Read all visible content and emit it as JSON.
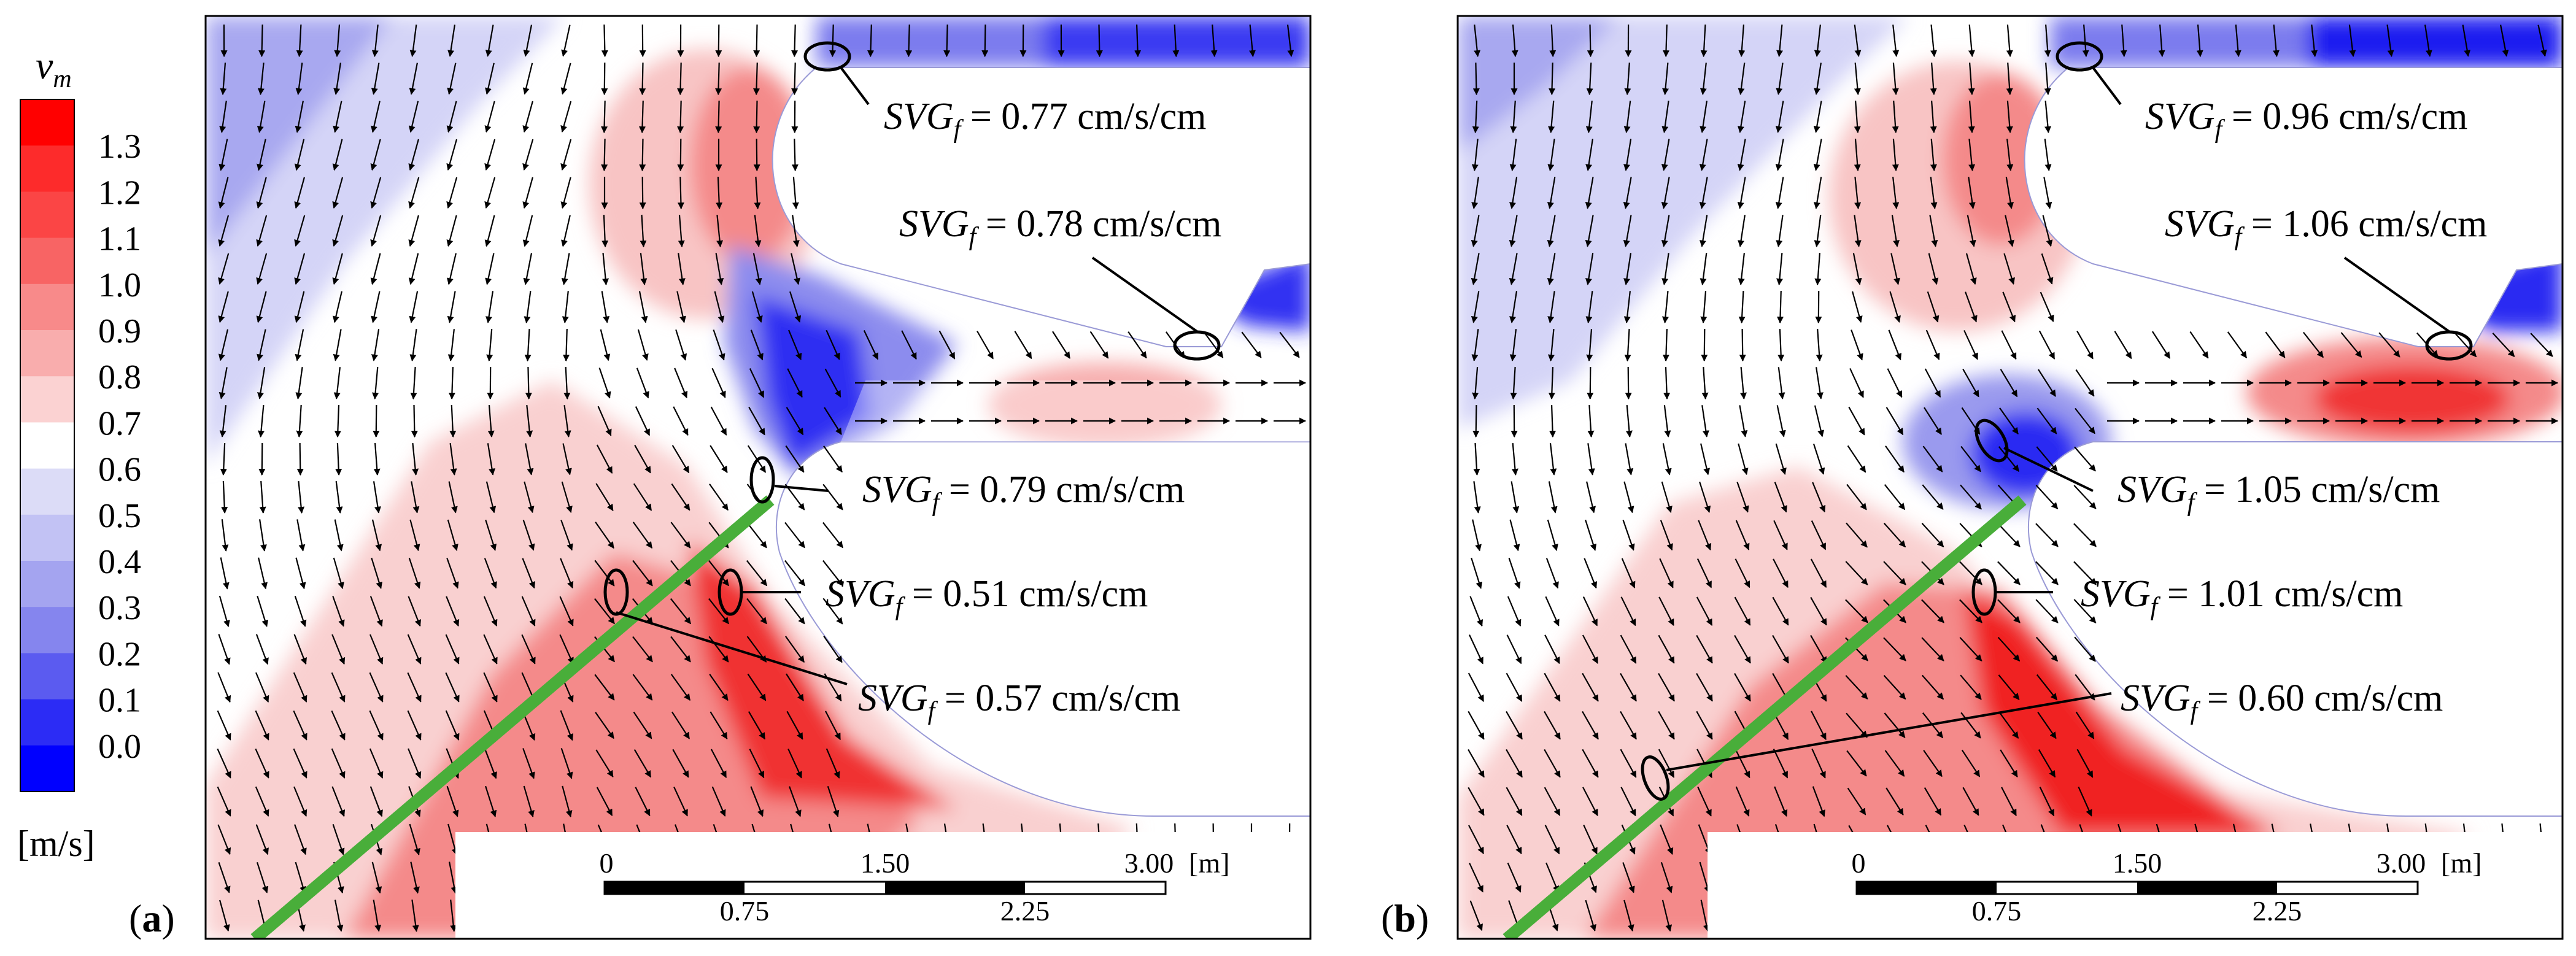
{
  "colorbar": {
    "symbol": "v",
    "subscript": "m",
    "unit": "[m/s]",
    "ticks": [
      "1.3",
      "1.2",
      "1.1",
      "1.0",
      "0.9",
      "0.8",
      "0.7",
      "0.6",
      "0.5",
      "0.4",
      "0.3",
      "0.2",
      "0.1",
      "0.0"
    ],
    "colors": [
      "#ff0000",
      "#fd2b2b",
      "#fb4545",
      "#f86464",
      "#f88a8a",
      "#f9adad",
      "#fbd2d2",
      "#ffffff",
      "#dcdcf7",
      "#c2c2f4",
      "#a4a4f0",
      "#8585ee",
      "#5b5bf0",
      "#2c2cf5",
      "#0000ff"
    ]
  },
  "palette": {
    "deep_blue": "#1c1cf0",
    "mid_blue": "#7c7cee",
    "light_blue": "#d4d4f7",
    "pale_red": "#f8c4c4",
    "mid_red": "#f48a8a",
    "deep_red": "#f02828",
    "stick": "#49ae3a"
  },
  "panels": [
    {
      "label_open": "(",
      "label": "a",
      "label_close": ")",
      "annotations": [
        {
          "name": "SVG",
          "sub": "f",
          "text": " = 0.77 cm/s/cm"
        },
        {
          "name": "SVG",
          "sub": "f",
          "text": " = 0.78 cm/s/cm"
        },
        {
          "name": "SVG",
          "sub": "f",
          "text": " = 0.79 cm/s/cm"
        },
        {
          "name": "SVG",
          "sub": "f",
          "text": " = 0.51 cm/s/cm"
        },
        {
          "name": "SVG",
          "sub": "f",
          "text": " = 0.57 cm/s/cm"
        }
      ]
    },
    {
      "label_open": "(",
      "label": "b",
      "label_close": ")",
      "annotations": [
        {
          "name": "SVG",
          "sub": "f",
          "text": " = 0.96 cm/s/cm"
        },
        {
          "name": "SVG",
          "sub": "f",
          "text": " = 1.06 cm/s/cm"
        },
        {
          "name": "SVG",
          "sub": "f",
          "text": " = 1.05 cm/s/cm"
        },
        {
          "name": "SVG",
          "sub": "f",
          "text": " = 1.01 cm/s/cm"
        },
        {
          "name": "SVG",
          "sub": "f",
          "text": " = 0.60 cm/s/cm"
        }
      ]
    }
  ],
  "scale_bar": {
    "top_ticks": [
      "0",
      "1.50",
      "3.00"
    ],
    "bottom_ticks": [
      "0.75",
      "2.25"
    ],
    "unit": "[m]"
  }
}
